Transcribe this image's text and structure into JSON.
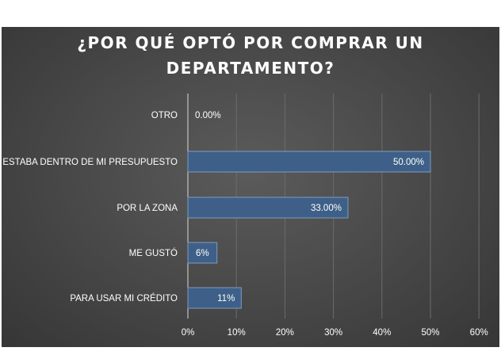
{
  "chart_data": {
    "type": "bar",
    "orientation": "horizontal",
    "title": "¿POR QUÉ OPTÓ POR COMPRAR UN DEPARTAMENTO?",
    "title_lines": [
      "¿POR QUÉ OPTÓ POR COMPRAR UN",
      "DEPARTAMENTO?"
    ],
    "categories": [
      "OTRO",
      "ESTABA DENTRO DE MI PRESUPUESTO",
      "POR LA ZONA",
      "ME GUSTÓ",
      "PARA USAR MI CRÉDITO"
    ],
    "values": [
      0.0,
      50.0,
      33.0,
      6.0,
      11.0
    ],
    "data_labels": [
      "0.00%",
      "50.00%",
      "33.00%",
      "6%",
      "11%"
    ],
    "xlim": [
      0,
      60
    ],
    "xticks": [
      "0%",
      "10%",
      "20%",
      "30%",
      "40%",
      "50%",
      "60%"
    ],
    "xlabel": "",
    "ylabel": "",
    "grid": true,
    "legend": "none",
    "bar_color": "#3e6088",
    "background_color": "#474747"
  }
}
